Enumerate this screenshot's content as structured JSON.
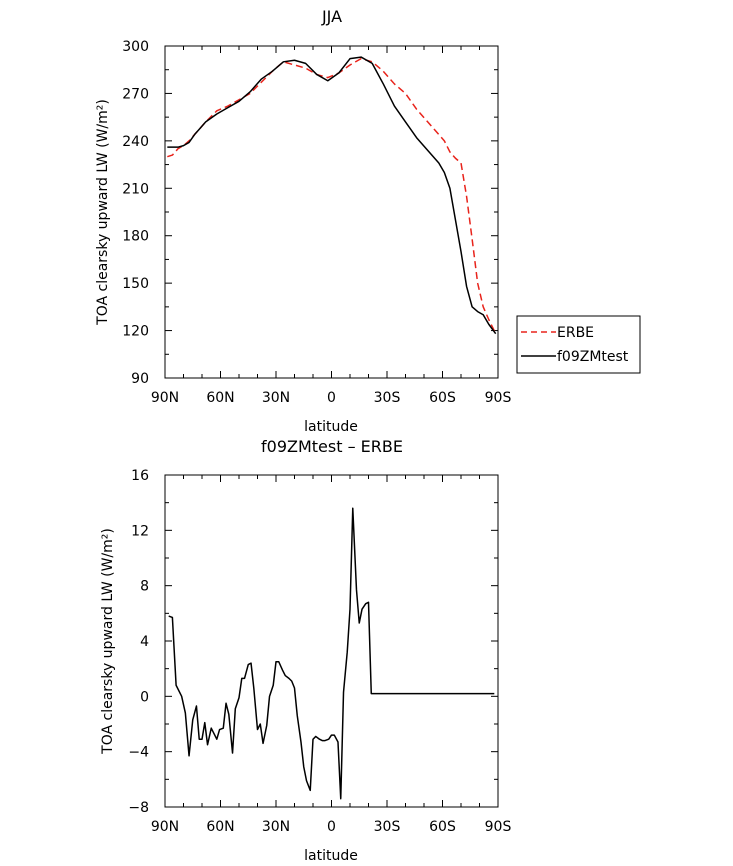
{
  "chart_data": [
    {
      "type": "line",
      "title": "JJA",
      "xlabel": "latitude",
      "ylabel": "TOA clearsky upward LW (W/m²)",
      "xlim": [
        90,
        -90
      ],
      "ylim": [
        90,
        300
      ],
      "xticks": [
        90,
        60,
        30,
        0,
        -30,
        -60,
        -90
      ],
      "xtick_labels": [
        "90N",
        "60N",
        "30N",
        "0",
        "30S",
        "60S",
        "90S"
      ],
      "yticks": [
        90,
        120,
        150,
        180,
        210,
        240,
        270,
        300
      ],
      "ytick_labels": [
        "90",
        "120",
        "150",
        "180",
        "210",
        "240",
        "270",
        "300"
      ],
      "legend_position": "right-bottom outside",
      "series": [
        {
          "name": "ERBE",
          "color": "#e8231b",
          "dashed": true,
          "x": [
            88.75,
            86,
            83,
            80,
            77,
            74,
            71,
            68,
            62,
            56,
            50,
            44,
            38,
            32,
            26,
            20,
            14,
            8,
            2,
            -4,
            -10,
            -16,
            -22,
            -28,
            -34,
            -40,
            -46,
            -52,
            -58,
            -61,
            -64,
            -67,
            -70,
            -73,
            -76,
            -79,
            -82,
            -85,
            -88.75
          ],
          "y": [
            230,
            231,
            235,
            237,
            240,
            244,
            248,
            252,
            259,
            262,
            266,
            270,
            277,
            284,
            290,
            288,
            286,
            282,
            280,
            283,
            288,
            292,
            290,
            284,
            276,
            270,
            260,
            252,
            244,
            240,
            233,
            229,
            226,
            205,
            178,
            150,
            135,
            127,
            118
          ]
        },
        {
          "name": "f09ZMtest",
          "color": "#000000",
          "dashed": false,
          "x": [
            88.75,
            86,
            83,
            80,
            77,
            74,
            71,
            68,
            62,
            56,
            50,
            44,
            38,
            32,
            26,
            20,
            14,
            8,
            2,
            -4,
            -10,
            -16,
            -22,
            -28,
            -34,
            -40,
            -46,
            -52,
            -58,
            -61,
            -64,
            -67,
            -70,
            -73,
            -76,
            -79,
            -82,
            -85,
            -88.75
          ],
          "y": [
            236,
            236,
            236,
            237,
            239,
            244,
            248,
            252,
            257,
            261,
            265,
            271,
            279,
            284,
            290,
            291,
            289,
            282,
            278,
            283,
            292,
            293,
            289,
            276,
            262,
            252,
            242,
            234,
            226,
            220,
            210,
            190,
            170,
            148,
            135,
            132,
            130,
            124,
            118
          ]
        }
      ]
    },
    {
      "type": "line",
      "title": "f09ZMtest – ERBE",
      "xlabel": "latitude",
      "ylabel": "TOA clearsky upward LW (W/m²)",
      "xlim": [
        90,
        -90
      ],
      "ylim": [
        -8,
        16
      ],
      "xticks": [
        90,
        60,
        30,
        0,
        -30,
        -60,
        -90
      ],
      "xtick_labels": [
        "90N",
        "60N",
        "30N",
        "0",
        "30S",
        "60S",
        "90S"
      ],
      "yticks": [
        -8,
        -4,
        0,
        4,
        8,
        12,
        16
      ],
      "ytick_labels": [
        "−8",
        "−4",
        "0",
        "4",
        "8",
        "12",
        "16"
      ],
      "series": [
        {
          "color": "#000000",
          "x": [
            88.0,
            86.0,
            84.0,
            81.0,
            79.0,
            77.0,
            75.0,
            73.0,
            71.5,
            70.0,
            68.5,
            67.0,
            65.0,
            63.5,
            62.0,
            60.5,
            58.5,
            57.0,
            55.5,
            53.5,
            52.0,
            50.0,
            48.5,
            47.0,
            45.0,
            43.5,
            42.0,
            40.0,
            38.5,
            37.0,
            35.0,
            33.5,
            31.5,
            30.0,
            28.5,
            26.5,
            25.0,
            23.0,
            21.5,
            20.0,
            18.5,
            16.5,
            15.0,
            13.5,
            11.5,
            10.0,
            8.5,
            6.5,
            5.0,
            3.5,
            1.5,
            0.0,
            -1.5,
            -3.5,
            -5.0,
            -6.5,
            -8.5,
            -10.0,
            -11.5,
            -13.5,
            -15.0,
            -16.5,
            -18.5,
            -20.0,
            -21.5,
            -23.5,
            -25.0,
            -26.5,
            -28.5,
            -30.0,
            -31.5,
            -33.5,
            -35.0,
            -36.5,
            -38.5,
            -40.0,
            -41.5,
            -43.5,
            -45.0,
            -46.5,
            -48.5,
            -50.0,
            -51.5,
            -53.5,
            -55.0,
            -56.5,
            -58.5,
            -60.0,
            -61.5,
            -63.5,
            -65.0,
            -66.5,
            -68.5,
            -70.0,
            -71.5,
            -73.5,
            -75.0,
            -76.5,
            -78.5,
            -80.0,
            -81.5,
            -83.5,
            -85.0,
            -86.5,
            -88.0
          ],
          "y": [
            5.8,
            5.7,
            0.8,
            0.0,
            -1.2,
            -4.3,
            -1.7,
            -0.7,
            -3.1,
            -3.1,
            -1.9,
            -3.5,
            -2.3,
            -2.7,
            -3.1,
            -2.4,
            -2.3,
            -0.5,
            -1.3,
            -4.1,
            -0.9,
            -0.1,
            1.3,
            1.3,
            2.3,
            2.4,
            0.6,
            -2.4,
            -2.0,
            -3.4,
            -2.1,
            0.0,
            0.8,
            2.5,
            2.5,
            1.9,
            1.5,
            1.3,
            1.1,
            0.6,
            -1.4,
            -3.3,
            -5.1,
            -6.1,
            -6.8,
            -3.1,
            -2.9,
            -3.1,
            -3.2,
            -3.2,
            -3.1,
            -2.8,
            -2.8,
            -3.3,
            -7.4,
            0.3,
            3.2,
            6.3,
            13.6,
            7.7,
            5.3,
            6.3,
            6.7,
            6.8,
            0.2,
            0.2,
            0.2,
            0.2,
            0.2,
            0.2,
            0.2,
            0.2,
            0.2,
            0.2,
            0.2,
            0.2,
            0.2,
            0.2,
            0.2,
            0.2,
            0.2,
            0.2,
            0.2,
            0.2,
            0.2,
            0.2,
            0.2,
            0.2,
            0.2,
            0.2,
            0.2,
            0.2,
            0.2,
            0.2,
            0.2,
            0.2,
            0.2,
            0.2,
            0.2,
            0.2,
            0.2,
            0.2,
            0.2,
            0.2,
            0.2
          ]
        }
      ]
    }
  ]
}
